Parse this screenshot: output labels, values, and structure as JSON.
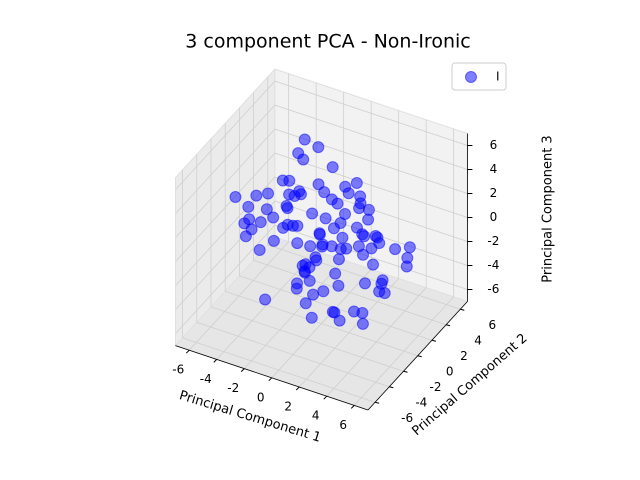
{
  "chart_data": {
    "type": "scatter3d",
    "title": "3 component PCA - Non-Ironic",
    "xlabel": "Principal Component 1",
    "ylabel": "Principal Component 2",
    "zlabel": "Principal Component 3",
    "xlim": [
      -7,
      7
    ],
    "ylim": [
      -7,
      7
    ],
    "zlim": [
      -7,
      7
    ],
    "xticks": [
      -6,
      -4,
      -2,
      0,
      2,
      4,
      6
    ],
    "yticks": [
      -6,
      -4,
      -2,
      0,
      2,
      4,
      6
    ],
    "zticks": [
      -6,
      -4,
      -2,
      0,
      2,
      4,
      6
    ],
    "grid": true,
    "legend": "upper right",
    "series": [
      {
        "name": "I",
        "color": "#0000ff",
        "x": [
          0.5,
          -1.2,
          2.3,
          -3.1,
          1.8,
          -0.4,
          3.5,
          -2.2,
          0.9,
          -4.1,
          2.7,
          -1.6,
          0.1,
          4.3,
          -2.9,
          1.3,
          -0.8,
          3.0,
          -3.6,
          2.0,
          -1.9,
          0.7,
          -5.0,
          4.8,
          -0.2,
          1.6,
          -2.6,
          3.8,
          -1.1,
          0.3,
          2.5,
          -3.3,
          1.0,
          -0.6,
          4.0,
          -4.4,
          2.2,
          -1.4,
          0.6,
          -2.0,
          3.3,
          -3.8,
          1.9,
          -0.9,
          5.2,
          -5.3,
          0.0,
          2.9,
          -2.4,
          1.4,
          -1.7,
          3.6,
          -0.3,
          0.8,
          -3.0,
          2.4,
          -4.7,
          4.5,
          -1.0,
          1.1,
          -2.8,
          3.1,
          0.2,
          -0.5,
          2.1,
          -3.5,
          1.7,
          -1.3,
          4.6,
          -4.0,
          0.4,
          -2.1,
          3.4,
          -0.7,
          1.2,
          -3.9,
          2.6,
          -1.8,
          0.9,
          5.5,
          -5.6,
          1.5,
          -2.5,
          3.7,
          -0.1,
          -1.5,
          2.8,
          -3.2,
          0.3,
          1.3,
          -4.3,
          4.1,
          -0.9,
          2.0,
          -2.3,
          6.0,
          -6.1,
          0.6,
          -1.0,
          3.2
        ],
        "y": [
          -0.8,
          2.1,
          -1.5,
          0.6,
          3.2,
          -2.7,
          1.1,
          -0.3,
          4.0,
          -1.9,
          0.9,
          -3.6,
          2.5,
          -0.7,
          1.6,
          -4.2,
          3.0,
          0.2,
          -2.2,
          1.4,
          -1.1,
          4.5,
          -0.5,
          2.8,
          -3.0,
          0.4,
          1.9,
          -4.8,
          3.6,
          -0.2,
          2.2,
          -1.3,
          -3.3,
          5.0,
          0.7,
          1.0,
          -2.5,
          3.3,
          -0.9,
          0.1,
          -4.0,
          2.6,
          1.3,
          -1.7,
          0.3,
          -0.6,
          5.3,
          -2.9,
          2.0,
          -5.1,
          1.7,
          -0.4,
          3.9,
          -3.8,
          2.4,
          0.8,
          -1.2,
          -0.1,
          4.2,
          -2.4,
          0.5,
          -4.4,
          -0.8,
          2.9,
          -1.6,
          3.5,
          -5.5,
          1.2,
          0.0,
          2.3,
          -3.1,
          1.5,
          -2.0,
          4.7,
          -0.5,
          -1.0,
          3.1,
          0.6,
          -3.4,
          1.8,
          0.2,
          -2.8,
          4.4,
          -1.4,
          5.7,
          -5.8,
          2.7,
          -0.6,
          1.0,
          -3.7,
          3.8,
          -2.1,
          0.9,
          -4.6,
          2.1,
          0.4,
          -0.3,
          6.1,
          -6.0,
          -1.2
        ],
        "z": [
          0.3,
          -1.4,
          2.0,
          -0.6,
          1.1,
          -2.5,
          0.8,
          3.1,
          -1.8,
          0.5,
          -3.2,
          1.6,
          -0.2,
          2.4,
          -1.0,
          0.9,
          -2.8,
          1.3,
          3.7,
          -0.7,
          2.6,
          -3.9,
          0.1,
          -1.5,
          3.0,
          -0.4,
          1.8,
          -2.2,
          0.6,
          4.2,
          -1.2,
          2.1,
          -4.0,
          0.4,
          -2.6,
          1.5,
          3.4,
          -0.9,
          -3.5,
          2.8,
          0.0,
          -1.9,
          4.6,
          -2.9,
          1.0,
          -0.3,
          -0.8,
          2.2,
          -4.4,
          1.2,
          -2.3,
          3.3,
          -0.5,
          0.7,
          -3.0,
          4.0,
          1.7,
          -1.6,
          -0.1,
          2.5,
          1.4,
          -2.0,
          5.2,
          -4.9,
          0.2,
          3.6,
          -1.1,
          0.9,
          -2.7,
          1.9,
          -0.6,
          4.9,
          -3.4,
          1.1,
          -5.3,
          0.6,
          -1.3,
          2.7,
          -0.9,
          0.3,
          -2.0,
          1.8,
          3.9,
          -3.8,
          -0.7,
          2.3,
          -5.0,
          1.0,
          5.5,
          -1.7,
          0.8,
          -4.1,
          -2.4,
          2.0,
          6.1,
          -0.2,
          1.4,
          -5.8,
          -1.5,
          3.0
        ]
      }
    ]
  }
}
